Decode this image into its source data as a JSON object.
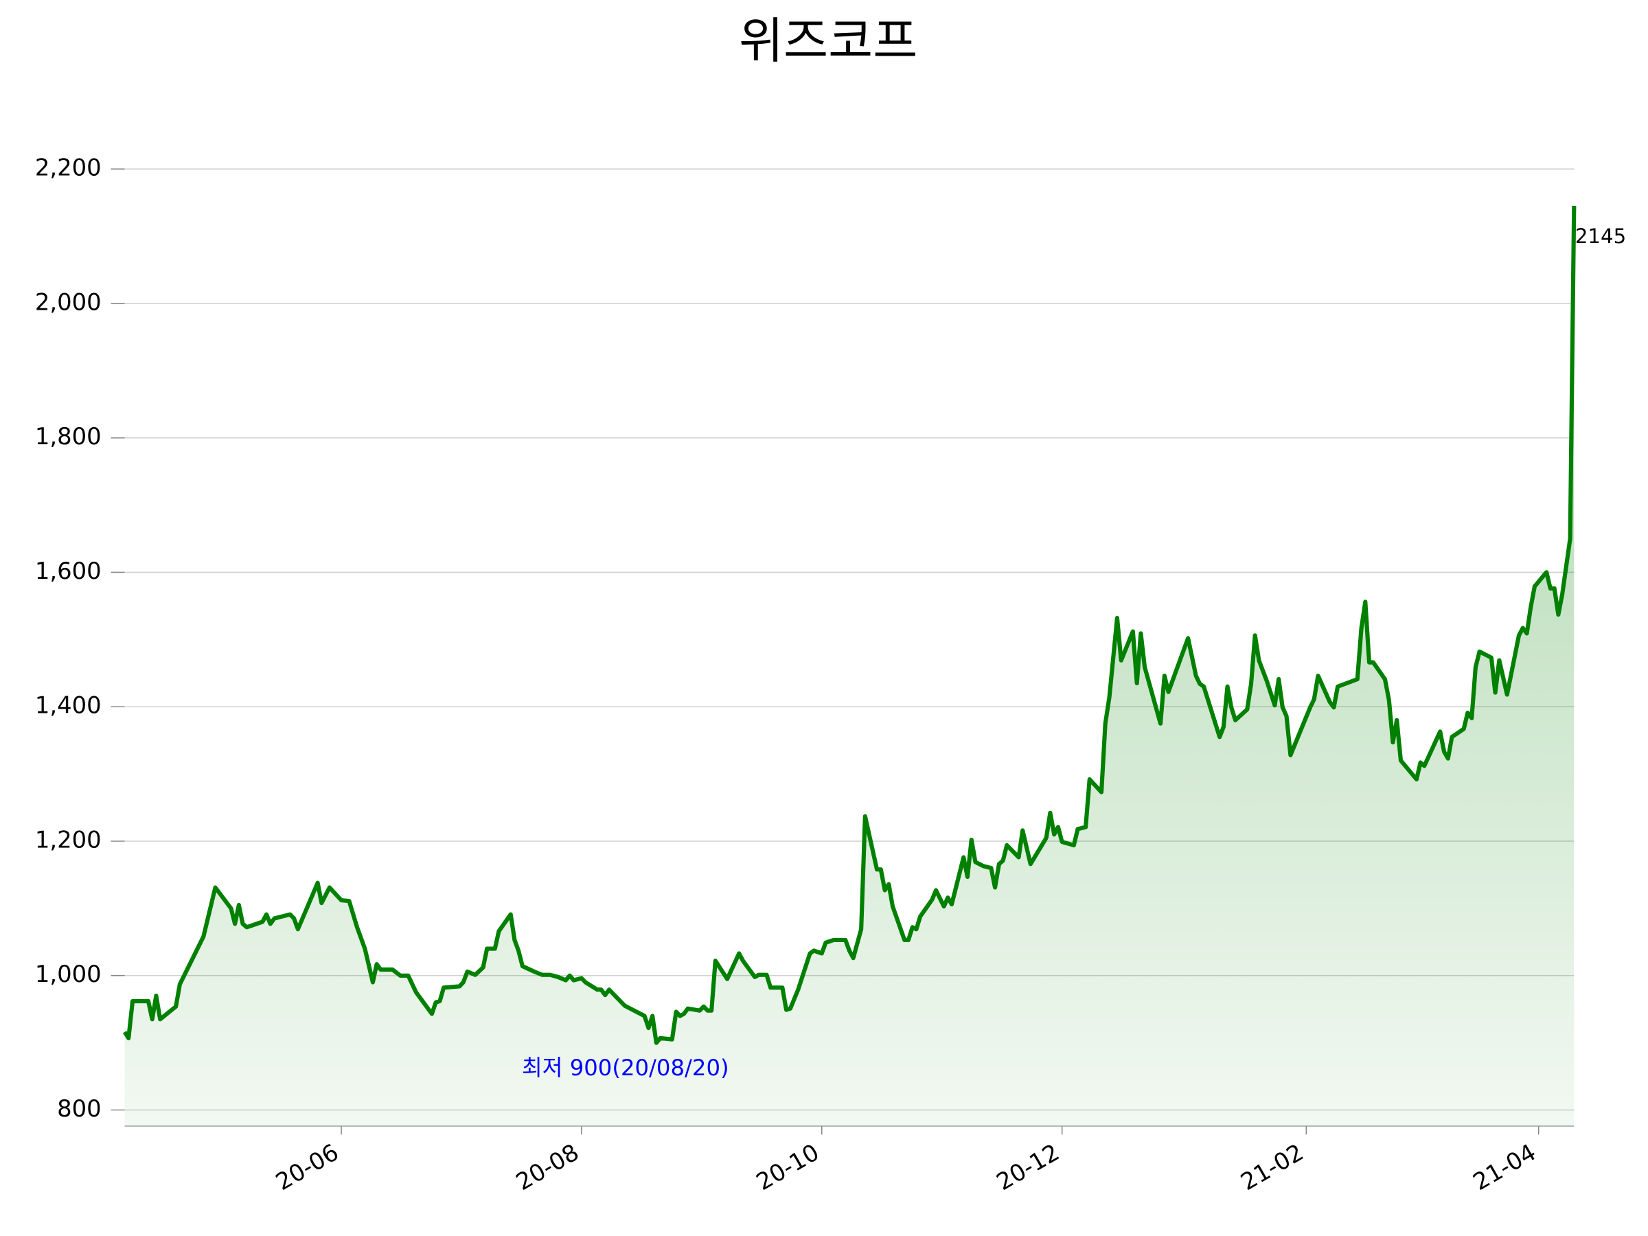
{
  "chart_data": {
    "type": "area-line",
    "title": "위즈코프",
    "color": "#008000",
    "grid": true,
    "x": [
      "2020-04-07",
      "2020-04-08",
      "2020-04-09",
      "2020-04-13",
      "2020-04-14",
      "2020-04-15",
      "2020-04-16",
      "2020-04-20",
      "2020-04-21",
      "2020-04-27",
      "2020-04-30",
      "2020-05-04",
      "2020-05-05",
      "2020-05-06",
      "2020-05-07",
      "2020-05-08",
      "2020-05-12",
      "2020-05-13",
      "2020-05-14",
      "2020-05-15",
      "2020-05-19",
      "2020-05-20",
      "2020-05-21",
      "2020-05-26",
      "2020-05-27",
      "2020-05-29",
      "2020-06-01",
      "2020-06-03",
      "2020-06-05",
      "2020-06-07",
      "2020-06-09",
      "2020-06-10",
      "2020-06-11",
      "2020-06-14",
      "2020-06-16",
      "2020-06-18",
      "2020-06-20",
      "2020-06-24",
      "2020-06-25",
      "2020-06-26",
      "2020-06-27",
      "2020-07-01",
      "2020-07-02",
      "2020-07-03",
      "2020-07-05",
      "2020-07-07",
      "2020-07-08",
      "2020-07-10",
      "2020-07-11",
      "2020-07-14",
      "2020-07-15",
      "2020-07-16",
      "2020-07-17",
      "2020-07-20",
      "2020-07-22",
      "2020-07-24",
      "2020-07-26",
      "2020-07-28",
      "2020-07-29",
      "2020-07-30",
      "2020-08-01",
      "2020-08-02",
      "2020-08-05",
      "2020-08-06",
      "2020-08-07",
      "2020-08-08",
      "2020-08-12",
      "2020-08-17",
      "2020-08-18",
      "2020-08-19",
      "2020-08-20",
      "2020-08-21",
      "2020-08-24",
      "2020-08-25",
      "2020-08-26",
      "2020-08-27",
      "2020-08-28",
      "2020-08-31",
      "2020-09-01",
      "2020-09-02",
      "2020-09-03",
      "2020-09-04",
      "2020-09-07",
      "2020-09-10",
      "2020-09-11",
      "2020-09-14",
      "2020-09-15",
      "2020-09-17",
      "2020-09-18",
      "2020-09-21",
      "2020-09-22",
      "2020-09-23",
      "2020-09-25",
      "2020-09-28",
      "2020-09-29",
      "2020-10-01",
      "2020-10-02",
      "2020-10-04",
      "2020-10-07",
      "2020-10-08",
      "2020-10-09",
      "2020-10-11",
      "2020-10-12",
      "2020-10-15",
      "2020-10-16",
      "2020-10-17",
      "2020-10-18",
      "2020-10-19",
      "2020-10-22",
      "2020-10-23",
      "2020-10-24",
      "2020-10-25",
      "2020-10-26",
      "2020-10-29",
      "2020-10-30",
      "2020-11-01",
      "2020-11-02",
      "2020-11-03",
      "2020-11-06",
      "2020-11-07",
      "2020-11-08",
      "2020-11-09",
      "2020-11-11",
      "2020-11-13",
      "2020-11-14",
      "2020-11-15",
      "2020-11-16",
      "2020-11-17",
      "2020-11-20",
      "2020-11-21",
      "2020-11-23",
      "2020-11-27",
      "2020-11-28",
      "2020-11-29",
      "2020-11-30",
      "2020-12-01",
      "2020-12-04",
      "2020-12-05",
      "2020-12-07",
      "2020-12-08",
      "2020-12-11",
      "2020-12-12",
      "2020-12-13",
      "2020-12-15",
      "2020-12-16",
      "2020-12-19",
      "2020-12-20",
      "2020-12-21",
      "2020-12-22",
      "2020-12-26",
      "2020-12-27",
      "2020-12-28",
      "2021-01-02",
      "2021-01-04",
      "2021-01-05",
      "2021-01-06",
      "2021-01-10",
      "2021-01-11",
      "2021-01-12",
      "2021-01-13",
      "2021-01-14",
      "2021-01-17",
      "2021-01-18",
      "2021-01-19",
      "2021-01-20",
      "2021-01-22",
      "2021-01-24",
      "2021-01-25",
      "2021-01-26",
      "2021-01-27",
      "2021-01-28",
      "2021-02-02",
      "2021-02-03",
      "2021-02-04",
      "2021-02-07",
      "2021-02-08",
      "2021-02-09",
      "2021-02-14",
      "2021-02-15",
      "2021-02-16",
      "2021-02-17",
      "2021-02-18",
      "2021-02-21",
      "2021-02-22",
      "2021-02-23",
      "2021-02-24",
      "2021-02-25",
      "2021-03-01",
      "2021-03-02",
      "2021-03-03",
      "2021-03-07",
      "2021-03-08",
      "2021-03-09",
      "2021-03-10",
      "2021-03-13",
      "2021-03-14",
      "2021-03-15",
      "2021-03-16",
      "2021-03-17",
      "2021-03-20",
      "2021-03-21",
      "2021-03-22",
      "2021-03-24",
      "2021-03-27",
      "2021-03-28",
      "2021-03-29",
      "2021-03-30",
      "2021-03-31",
      "2021-04-03",
      "2021-04-04",
      "2021-04-05",
      "2021-04-06",
      "2021-04-07",
      "2021-04-09",
      "2021-04-10"
    ],
    "values": [
      916,
      907,
      962,
      962,
      935,
      970,
      935,
      954,
      987,
      1058,
      1131,
      1100,
      1077,
      1105,
      1077,
      1072,
      1080,
      1091,
      1077,
      1085,
      1091,
      1085,
      1069,
      1138,
      1108,
      1131,
      1112,
      1111,
      1072,
      1040,
      990,
      1017,
      1009,
      1009,
      1000,
      1000,
      975,
      943,
      960,
      962,
      982,
      984,
      990,
      1006,
      1001,
      1012,
      1040,
      1040,
      1066,
      1091,
      1053,
      1037,
      1014,
      1006,
      1001,
      1001,
      998,
      993,
      1000,
      993,
      996,
      990,
      979,
      979,
      971,
      979,
      955,
      940,
      922,
      940,
      900,
      907,
      905,
      946,
      940,
      943,
      951,
      948,
      954,
      948,
      948,
      1022,
      995,
      1033,
      1022,
      998,
      1001,
      1001,
      982,
      982,
      949,
      951,
      979,
      1033,
      1037,
      1033,
      1049,
      1053,
      1053,
      1037,
      1026,
      1069,
      1237,
      1158,
      1158,
      1127,
      1136,
      1103,
      1053,
      1053,
      1072,
      1069,
      1088,
      1113,
      1127,
      1103,
      1116,
      1106,
      1176,
      1147,
      1202,
      1169,
      1163,
      1160,
      1131,
      1166,
      1171,
      1194,
      1176,
      1216,
      1166,
      1205,
      1242,
      1210,
      1221,
      1199,
      1194,
      1218,
      1221,
      1292,
      1273,
      1375,
      1414,
      1532,
      1469,
      1512,
      1435,
      1509,
      1459,
      1375,
      1446,
      1422,
      1502,
      1446,
      1434,
      1430,
      1355,
      1370,
      1430,
      1399,
      1380,
      1396,
      1434,
      1506,
      1469,
      1438,
      1402,
      1441,
      1399,
      1386,
      1328,
      1399,
      1411,
      1446,
      1407,
      1399,
      1430,
      1441,
      1517,
      1556,
      1466,
      1466,
      1441,
      1410,
      1347,
      1380,
      1320,
      1292,
      1317,
      1312,
      1363,
      1333,
      1323,
      1355,
      1367,
      1391,
      1383,
      1459,
      1482,
      1473,
      1421,
      1469,
      1418,
      1506,
      1517,
      1509,
      1548,
      1579,
      1600,
      1576,
      1576,
      1537,
      1567,
      1650,
      2145
    ],
    "xlim": [
      "2020-04-07",
      "2021-04-10"
    ],
    "xticks": [
      {
        "value": "2020-06-01",
        "label": "20-06"
      },
      {
        "value": "2020-08-01",
        "label": "20-08"
      },
      {
        "value": "2020-10-01",
        "label": "20-10"
      },
      {
        "value": "2020-12-01",
        "label": "20-12"
      },
      {
        "value": "2021-02-01",
        "label": "21-02"
      },
      {
        "value": "2021-04-01",
        "label": "21-04"
      }
    ],
    "ylim": [
      776,
      2200
    ],
    "yticks": [
      800,
      {
        "value": 1000,
        "label": "1,000"
      },
      {
        "value": 1200,
        "label": "1,200"
      },
      {
        "value": 1400,
        "label": "1,400"
      },
      {
        "value": 1600,
        "label": "1,600"
      },
      {
        "value": 1800,
        "label": "1,800"
      },
      {
        "value": 2000,
        "label": "2,000"
      },
      {
        "value": 2200,
        "label": "2,200"
      }
    ],
    "annotation": {
      "text": "최저 900(20/08/20)",
      "color": "#0000ff"
    }
  }
}
